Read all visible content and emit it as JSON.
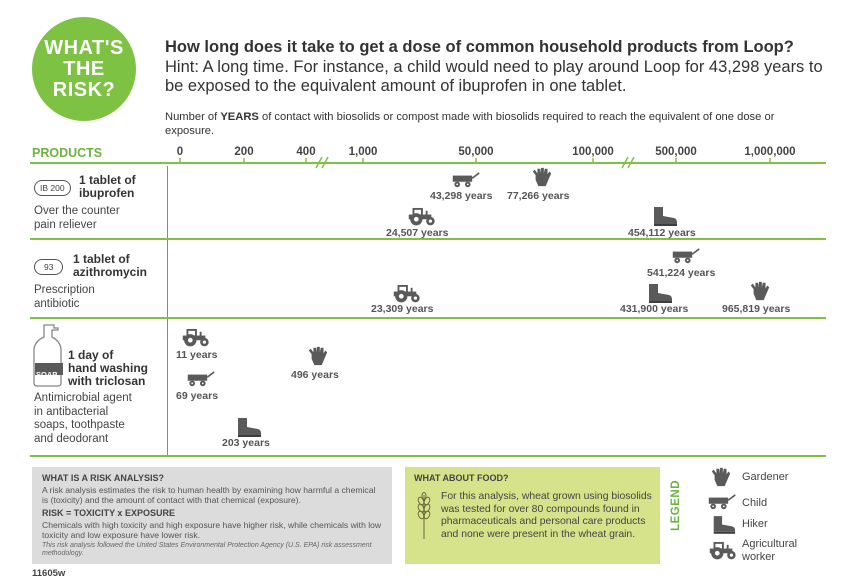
{
  "badge": {
    "line1": "WHAT'S",
    "line2": "THE",
    "line3": "RISK?",
    "color": "#7dc242"
  },
  "title": "How long does it take to get a dose of common household products from Loop?",
  "hint": "Hint: A long time. For instance, a child would need to play around Loop for 43,298 years to be exposed to the equivalent amount of ibuprofen in one tablet.",
  "intro": {
    "before": "Number of ",
    "bold": "YEARS",
    "after": " of contact with biosolids or compost made with biosolids required to reach the equivalent of one dose or exposure."
  },
  "products_header": "PRODUCTS",
  "axis_ticks": [
    "0",
    "200",
    "400",
    "1,000",
    "50,000",
    "100,000",
    "500,000",
    "1,000,000"
  ],
  "products": [
    {
      "pill": "IB 200",
      "name_line1": "1 tablet of",
      "name_line2": "ibuprofen",
      "desc_line1": "Over the counter",
      "desc_line2": "pain reliever",
      "values": {
        "child": "43,298 years",
        "gardener": "77,266 years",
        "agricultural": "24,507 years",
        "hiker": "454,112 years"
      }
    },
    {
      "pill": "93",
      "name_line1": "1 tablet of",
      "name_line2": "azithromycin",
      "desc_line1": "Prescription",
      "desc_line2": "antibiotic",
      "values": {
        "child": "541,224 years",
        "agricultural": "23,309 years",
        "hiker": "431,900 years",
        "gardener": "965,819 years"
      }
    },
    {
      "soap_label": "SOAP",
      "name_line1": "1 day of",
      "name_line2": "hand washing",
      "name_line3": "with triclosan",
      "desc_line1": "Antimicrobial agent",
      "desc_line2": "in antibacterial",
      "desc_line3": "soaps, toothpaste",
      "desc_line4": "and deodorant",
      "values": {
        "agricultural": "11 years",
        "child": "69 years",
        "gardener": "496 years",
        "hiker": "203 years"
      }
    }
  ],
  "risk_box": {
    "heading": "WHAT IS A RISK ANALYSIS?",
    "text": "A risk analysis estimates the risk to human health by examining how harmful a chemical is (toxicity) and the amount of contact with that chemical (exposure).",
    "formula": "RISK = TOXICITY x EXPOSURE",
    "text2": "Chemicals with high toxicity and high exposure have higher risk, while chemicals with low toxicity and low exposure have lower risk.",
    "note": "This risk analysis followed the United States Environmental Protection Agency (U.S. EPA) risk assessment methodology."
  },
  "food_box": {
    "heading": "WHAT ABOUT FOOD?",
    "text": "For this analysis, wheat grown using biosolids was tested for over 80 compounds found in pharmaceuticals and personal care products and none were present in the wheat grain."
  },
  "legend": {
    "title": "LEGEND",
    "gardener": "Gardener",
    "child": "Child",
    "hiker": "Hiker",
    "agricultural_line1": "Agricultural",
    "agricultural_line2": "worker"
  },
  "footer_code": "11605w",
  "colors": {
    "green": "#7dc242",
    "food_bg": "#d6e38b",
    "risk_bg": "#dcdcdc",
    "icon": "#5a5a5a"
  }
}
